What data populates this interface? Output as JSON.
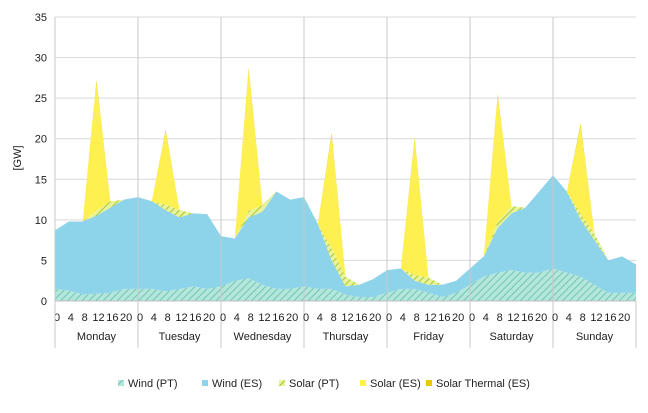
{
  "chart_data": {
    "type": "area",
    "stacked": true,
    "ylabel": "[GW]",
    "ylim": [
      0,
      35
    ],
    "yticks": [
      0,
      5,
      10,
      15,
      20,
      25,
      30,
      35
    ],
    "grid": "horizontal",
    "legend_position": "bottom",
    "x_hour_ticks": [
      "0",
      "4",
      "8",
      "12",
      "16",
      "20"
    ],
    "days": [
      "Monday",
      "Tuesday",
      "Wednesday",
      "Thursday",
      "Friday",
      "Saturday",
      "Sunday"
    ],
    "x_hours": [
      0,
      4,
      8,
      12,
      16,
      20,
      24,
      28,
      32,
      36,
      40,
      44,
      48,
      52,
      56,
      60,
      64,
      68,
      72,
      76,
      80,
      84,
      88,
      92,
      96,
      100,
      104,
      108,
      112,
      116,
      120,
      124,
      128,
      132,
      136,
      140,
      144,
      148,
      152,
      156,
      160,
      164,
      168
    ],
    "series": [
      {
        "name": "Wind (PT)",
        "color": "#7fd1c4",
        "pattern": "hatch",
        "values": [
          1.5,
          1.3,
          0.8,
          0.9,
          1.0,
          1.5,
          1.5,
          1.5,
          1.2,
          1.5,
          1.8,
          1.5,
          1.8,
          2.5,
          2.8,
          2.0,
          1.5,
          1.5,
          1.8,
          1.5,
          1.5,
          0.8,
          0.5,
          0.5,
          1.0,
          1.5,
          1.5,
          1.0,
          0.5,
          1.0,
          2.0,
          3.0,
          3.5,
          3.8,
          3.5,
          3.5,
          4.0,
          3.5,
          3.0,
          2.0,
          1.0,
          1.0,
          1.0
        ]
      },
      {
        "name": "Wind (ES)",
        "color": "#8dd3ea",
        "pattern": "solid",
        "values": [
          7.2,
          8.5,
          9.0,
          9.6,
          10.5,
          11.0,
          11.3,
          10.8,
          10.0,
          8.8,
          9.0,
          9.2,
          6.2,
          5.2,
          7.5,
          9.0,
          12.0,
          11.0,
          11.0,
          8.0,
          3.5,
          1.0,
          1.5,
          2.2,
          2.8,
          2.5,
          1.0,
          1.0,
          1.5,
          1.5,
          2.0,
          2.5,
          5.5,
          7.0,
          8.0,
          10.0,
          11.5,
          10.0,
          7.0,
          5.5,
          4.0,
          4.5,
          3.5
        ]
      },
      {
        "name": "Solar (PT)",
        "color": "#c8e060",
        "pattern": "hatch",
        "values": [
          0,
          0,
          0,
          0.6,
          0.8,
          0,
          0,
          0,
          0.7,
          0.9,
          0,
          0,
          0,
          0,
          0.8,
          0.8,
          0,
          0,
          0,
          0,
          1.5,
          1.2,
          0,
          0,
          0,
          0,
          0.7,
          0.9,
          0,
          0,
          0,
          0,
          0.7,
          0.9,
          0,
          0,
          0,
          0,
          0.8,
          0.8,
          0,
          0,
          0
        ]
      },
      {
        "name": "Solar (ES)",
        "color": "#fdf050",
        "pattern": "solid",
        "values": [
          0,
          0,
          0,
          15.8,
          0,
          0,
          0,
          0,
          9.0,
          0,
          0,
          0,
          0,
          0,
          17.3,
          0,
          0,
          0,
          0,
          0,
          13.9,
          0,
          0,
          0,
          0,
          0,
          16.6,
          0,
          0,
          0,
          0,
          0,
          15.5,
          0,
          0,
          0,
          0,
          0,
          10.7,
          0,
          0,
          0,
          0
        ]
      },
      {
        "name": "Solar Thermal (ES)",
        "color": "#e8c800",
        "pattern": "solid",
        "values": [
          0,
          0,
          0,
          0.3,
          0,
          0,
          0,
          0,
          0.2,
          0,
          0,
          0,
          0,
          0,
          0.3,
          0,
          0,
          0,
          0,
          0,
          0.3,
          0,
          0,
          0,
          0,
          0,
          0.3,
          0,
          0,
          0,
          0,
          0,
          0.3,
          0,
          0,
          0,
          0,
          0,
          0.3,
          0,
          0,
          0,
          0
        ]
      }
    ],
    "legend": [
      {
        "label": "Wind (PT)",
        "color": "#7fd1c4"
      },
      {
        "label": "Wind (ES)",
        "color": "#8dd3ea"
      },
      {
        "label": "Solar (PT)",
        "color": "#c8e060"
      },
      {
        "label": "Solar (ES)",
        "color": "#fdf050"
      },
      {
        "label": "Solar Thermal (ES)",
        "color": "#e8c800"
      }
    ]
  }
}
